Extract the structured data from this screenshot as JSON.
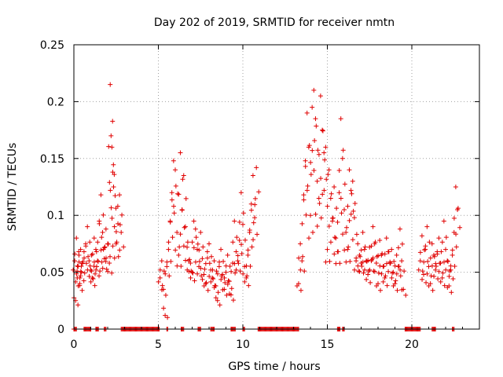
{
  "chart_data": {
    "type": "scatter",
    "title": "Day 202 of 2019, SRMTID for receiver nmtn",
    "xlabel": "GPS time / hours",
    "ylabel": "SRMTID / TECUs",
    "xlim": [
      0,
      24
    ],
    "ylim": [
      0,
      0.25
    ],
    "xticks": [
      0,
      5,
      10,
      15,
      20
    ],
    "xtick_labels": [
      "0",
      "5",
      "10",
      "15",
      "20"
    ],
    "yticks": [
      0,
      0.05,
      0.1,
      0.15,
      0.2,
      0.25
    ],
    "ytick_labels": [
      "0",
      "0.05",
      "0.1",
      "0.15",
      "0.2",
      "0.25"
    ],
    "grid": true,
    "marker": "plus",
    "color": "#e00000",
    "series": [
      {
        "name": "SRMTID",
        "x": [
          0.05,
          0.1,
          0.15,
          0.2,
          0.25,
          0.3,
          0.35,
          0.4,
          0.45,
          0.5,
          0.6,
          0.7,
          0.8,
          0.9,
          1.0,
          1.05,
          1.1,
          1.2,
          1.3,
          1.35,
          1.4,
          1.5,
          1.6,
          1.7,
          1.75,
          1.8,
          1.9,
          2.0,
          2.1,
          2.15,
          2.2,
          2.25,
          2.3,
          2.35,
          2.4,
          2.5,
          2.6,
          2.7,
          2.8,
          5.1,
          5.2,
          5.3,
          5.4,
          5.5,
          5.6,
          5.7,
          5.8,
          5.9,
          6.0,
          6.1,
          6.2,
          6.3,
          6.4,
          6.5,
          6.6,
          6.7,
          6.8,
          6.9,
          7.0,
          7.1,
          7.2,
          7.3,
          7.4,
          7.5,
          7.6,
          7.7,
          7.8,
          7.9,
          8.0,
          8.1,
          8.2,
          8.3,
          8.4,
          8.5,
          8.6,
          8.7,
          8.8,
          8.9,
          9.0,
          9.1,
          9.2,
          9.3,
          9.4,
          9.5,
          9.6,
          9.7,
          9.8,
          9.9,
          10.0,
          10.1,
          10.2,
          10.3,
          10.4,
          10.5,
          10.6,
          10.7,
          10.8,
          13.3,
          13.4,
          13.5,
          13.6,
          13.7,
          13.8,
          13.9,
          14.0,
          14.1,
          14.2,
          14.3,
          14.4,
          14.5,
          14.6,
          14.7,
          14.8,
          14.9,
          15.0,
          15.1,
          15.2,
          15.3,
          15.4,
          15.5,
          15.6,
          15.7,
          15.8,
          15.9,
          16.0,
          16.1,
          16.2,
          16.3,
          16.4,
          16.5,
          16.6,
          16.7,
          16.8,
          16.9,
          17.0,
          17.1,
          17.2,
          17.3,
          17.4,
          17.5,
          17.6,
          17.7,
          17.8,
          17.9,
          18.0,
          18.1,
          18.2,
          18.3,
          18.4,
          18.5,
          18.6,
          18.7,
          18.8,
          18.9,
          19.0,
          19.1,
          19.2,
          19.3,
          19.4,
          19.5,
          20.5,
          20.6,
          20.7,
          20.8,
          20.9,
          21.0,
          21.1,
          21.2,
          21.3,
          21.4,
          21.5,
          21.6,
          21.7,
          21.8,
          21.9,
          22.0,
          22.1,
          22.2,
          22.3,
          22.4,
          22.5,
          22.6,
          22.7
        ],
        "y": [
          0.06,
          0.025,
          0.08,
          0.045,
          0.055,
          0.065,
          0.04,
          0.07,
          0.05,
          0.058,
          0.068,
          0.075,
          0.09,
          0.06,
          0.052,
          0.065,
          0.045,
          0.08,
          0.07,
          0.055,
          0.06,
          0.095,
          0.118,
          0.085,
          0.07,
          0.062,
          0.088,
          0.075,
          0.058,
          0.215,
          0.17,
          0.16,
          0.138,
          0.125,
          0.09,
          0.075,
          0.108,
          0.118,
          0.085,
          0.045,
          0.06,
          0.035,
          0.012,
          0.055,
          0.07,
          0.095,
          0.12,
          0.148,
          0.14,
          0.085,
          0.065,
          0.155,
          0.105,
          0.135,
          0.09,
          0.072,
          0.06,
          0.058,
          0.05,
          0.095,
          0.088,
          0.07,
          0.055,
          0.085,
          0.062,
          0.048,
          0.04,
          0.068,
          0.075,
          0.052,
          0.045,
          0.06,
          0.038,
          0.025,
          0.055,
          0.07,
          0.048,
          0.035,
          0.05,
          0.065,
          0.042,
          0.03,
          0.058,
          0.095,
          0.068,
          0.06,
          0.078,
          0.12,
          0.092,
          0.055,
          0.045,
          0.065,
          0.085,
          0.11,
          0.135,
          0.098,
          0.142,
          0.04,
          0.075,
          0.06,
          0.118,
          0.148,
          0.19,
          0.16,
          0.1,
          0.195,
          0.21,
          0.185,
          0.13,
          0.115,
          0.205,
          0.175,
          0.155,
          0.16,
          0.07,
          0.14,
          0.115,
          0.095,
          0.125,
          0.08,
          0.068,
          0.12,
          0.185,
          0.15,
          0.105,
          0.085,
          0.07,
          0.14,
          0.122,
          0.13,
          0.098,
          0.06,
          0.075,
          0.065,
          0.058,
          0.085,
          0.07,
          0.06,
          0.048,
          0.072,
          0.06,
          0.09,
          0.075,
          0.058,
          0.04,
          0.078,
          0.065,
          0.055,
          0.045,
          0.08,
          0.068,
          0.058,
          0.07,
          0.05,
          0.04,
          0.065,
          0.055,
          0.088,
          0.06,
          0.035,
          0.06,
          0.082,
          0.048,
          0.07,
          0.09,
          0.055,
          0.04,
          0.075,
          0.065,
          0.052,
          0.068,
          0.08,
          0.058,
          0.045,
          0.095,
          0.07,
          0.06,
          0.038,
          0.052,
          0.065,
          0.085,
          0.125,
          0.105
        ]
      },
      {
        "name": "zero-level segments",
        "y": 0,
        "segments": [
          [
            0.0,
            0.15
          ],
          [
            0.6,
            1.0
          ],
          [
            1.3,
            1.45
          ],
          [
            1.8,
            1.9
          ],
          [
            2.8,
            5.05
          ],
          [
            5.5,
            5.55
          ],
          [
            6.35,
            6.5
          ],
          [
            7.35,
            7.5
          ],
          [
            8.1,
            8.3
          ],
          [
            9.3,
            9.55
          ],
          [
            10.0,
            10.1
          ],
          [
            10.9,
            13.3
          ],
          [
            15.6,
            15.75
          ],
          [
            15.9,
            16.0
          ],
          [
            19.6,
            20.5
          ],
          [
            21.2,
            21.4
          ],
          [
            22.4,
            22.5
          ]
        ]
      }
    ]
  }
}
